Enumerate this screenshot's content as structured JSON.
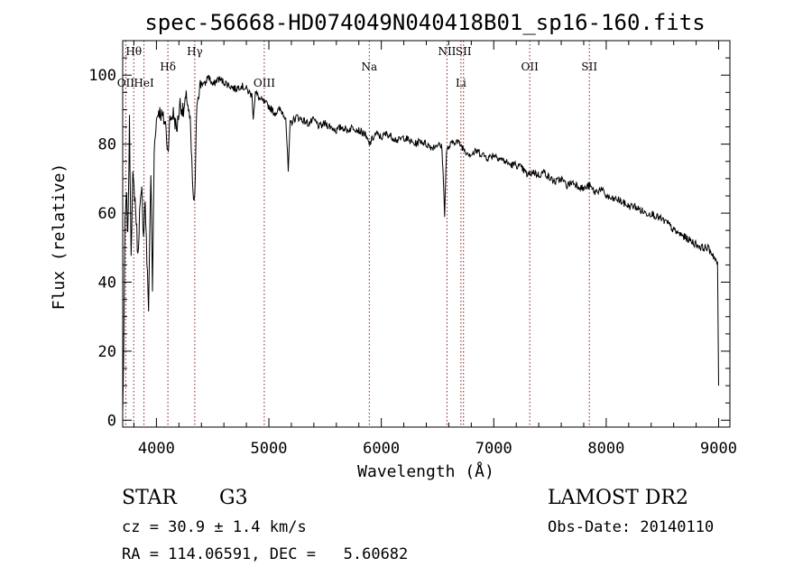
{
  "chart_data": {
    "type": "line",
    "title": "spec-56668-HD074049N040418B01_sp16-160.fits",
    "xlabel": "Wavelength (Å)",
    "ylabel": "Flux (relative)",
    "xlim": [
      3700,
      9100
    ],
    "ylim": [
      -2,
      110
    ],
    "xticks": [
      4000,
      5000,
      6000,
      7000,
      8000,
      9000
    ],
    "yticks": [
      0,
      20,
      40,
      60,
      80,
      100
    ],
    "grid": false,
    "line_color": "#000000",
    "marker_color": "#8b1a1a",
    "lines": [
      {
        "label": "OII",
        "x": 3727,
        "tier": 2
      },
      {
        "label": "Hθ",
        "x": 3798,
        "tier": 0
      },
      {
        "label": "HeI",
        "x": 3889,
        "tier": 2
      },
      {
        "label": "Hδ",
        "x": 4102,
        "tier": 1
      },
      {
        "label": "Hγ",
        "x": 4341,
        "tier": 0
      },
      {
        "label": "OIII",
        "x": 4959,
        "tier": 2
      },
      {
        "label": "Na",
        "x": 5893,
        "tier": 1
      },
      {
        "label": "NII",
        "x": 6584,
        "tier": 0
      },
      {
        "label": "Li",
        "x": 6708,
        "tier": 2
      },
      {
        "label": "SII",
        "x": 6731,
        "tier": 0
      },
      {
        "label": "OII",
        "x": 7320,
        "tier": 1
      },
      {
        "label": "SII",
        "x": 7850,
        "tier": 1
      }
    ],
    "series_anchors": [
      [
        3700,
        2
      ],
      [
        3710,
        22
      ],
      [
        3720,
        58
      ],
      [
        3735,
        64
      ],
      [
        3745,
        52
      ],
      [
        3760,
        86
      ],
      [
        3775,
        50
      ],
      [
        3790,
        70
      ],
      [
        3810,
        64
      ],
      [
        3825,
        55
      ],
      [
        3835,
        47
      ],
      [
        3850,
        60
      ],
      [
        3870,
        66
      ],
      [
        3885,
        54
      ],
      [
        3900,
        64
      ],
      [
        3915,
        46
      ],
      [
        3930,
        33
      ],
      [
        3950,
        72
      ],
      [
        3965,
        38
      ],
      [
        3980,
        78
      ],
      [
        3995,
        86
      ],
      [
        4020,
        90
      ],
      [
        4050,
        88
      ],
      [
        4080,
        86
      ],
      [
        4101,
        78
      ],
      [
        4120,
        87
      ],
      [
        4150,
        89
      ],
      [
        4180,
        84
      ],
      [
        4210,
        92
      ],
      [
        4240,
        89
      ],
      [
        4270,
        94
      ],
      [
        4300,
        86
      ],
      [
        4320,
        70
      ],
      [
        4330,
        62
      ],
      [
        4345,
        68
      ],
      [
        4360,
        93
      ],
      [
        4380,
        96
      ],
      [
        4400,
        98
      ],
      [
        4430,
        97
      ],
      [
        4460,
        100
      ],
      [
        4500,
        97
      ],
      [
        4550,
        99
      ],
      [
        4600,
        98
      ],
      [
        4650,
        97
      ],
      [
        4700,
        96
      ],
      [
        4750,
        97
      ],
      [
        4800,
        96
      ],
      [
        4850,
        94
      ],
      [
        4861,
        88
      ],
      [
        4880,
        95
      ],
      [
        4920,
        93
      ],
      [
        4960,
        92
      ],
      [
        5000,
        91
      ],
      [
        5050,
        89
      ],
      [
        5100,
        90
      ],
      [
        5150,
        88
      ],
      [
        5172,
        72
      ],
      [
        5190,
        86
      ],
      [
        5250,
        88
      ],
      [
        5300,
        87
      ],
      [
        5350,
        86
      ],
      [
        5400,
        87
      ],
      [
        5450,
        85
      ],
      [
        5500,
        86
      ],
      [
        5550,
        85
      ],
      [
        5600,
        84
      ],
      [
        5650,
        85
      ],
      [
        5700,
        84
      ],
      [
        5750,
        85
      ],
      [
        5800,
        84
      ],
      [
        5850,
        83
      ],
      [
        5893,
        80
      ],
      [
        5950,
        83
      ],
      [
        6000,
        82
      ],
      [
        6050,
        83
      ],
      [
        6100,
        82
      ],
      [
        6150,
        81
      ],
      [
        6200,
        82
      ],
      [
        6250,
        81
      ],
      [
        6300,
        80
      ],
      [
        6350,
        81
      ],
      [
        6400,
        80
      ],
      [
        6450,
        79
      ],
      [
        6500,
        80
      ],
      [
        6540,
        79
      ],
      [
        6563,
        60
      ],
      [
        6580,
        78
      ],
      [
        6620,
        80
      ],
      [
        6660,
        81
      ],
      [
        6700,
        80
      ],
      [
        6750,
        78
      ],
      [
        6800,
        77
      ],
      [
        6850,
        78
      ],
      [
        6900,
        77
      ],
      [
        6950,
        76
      ],
      [
        7000,
        77
      ],
      [
        7050,
        76
      ],
      [
        7100,
        75
      ],
      [
        7150,
        74
      ],
      [
        7200,
        74
      ],
      [
        7250,
        73
      ],
      [
        7300,
        71
      ],
      [
        7350,
        72
      ],
      [
        7400,
        71
      ],
      [
        7450,
        72
      ],
      [
        7500,
        70
      ],
      [
        7550,
        69
      ],
      [
        7600,
        70
      ],
      [
        7650,
        68
      ],
      [
        7700,
        69
      ],
      [
        7750,
        68
      ],
      [
        7800,
        67
      ],
      [
        7850,
        68
      ],
      [
        7900,
        66
      ],
      [
        7950,
        67
      ],
      [
        8000,
        65
      ],
      [
        8050,
        64
      ],
      [
        8100,
        64
      ],
      [
        8150,
        63
      ],
      [
        8200,
        62
      ],
      [
        8250,
        62
      ],
      [
        8300,
        61
      ],
      [
        8350,
        60
      ],
      [
        8400,
        60
      ],
      [
        8450,
        59
      ],
      [
        8500,
        58
      ],
      [
        8550,
        57
      ],
      [
        8600,
        55
      ],
      [
        8650,
        54
      ],
      [
        8700,
        53
      ],
      [
        8750,
        52
      ],
      [
        8800,
        51
      ],
      [
        8850,
        50
      ],
      [
        8900,
        50
      ],
      [
        8950,
        48
      ],
      [
        8990,
        45
      ],
      [
        9000,
        10
      ]
    ]
  },
  "info": {
    "object_class": "STAR",
    "subclass": "G3",
    "survey": "LAMOST DR2",
    "cz": "cz = 30.9 ± 1.4 km/s",
    "obs_date": "Obs-Date: 20140110",
    "coords": "RA = 114.06591, DEC =   5.60682"
  }
}
